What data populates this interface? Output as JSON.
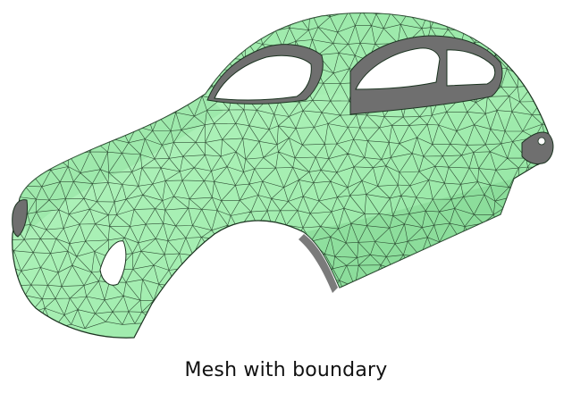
{
  "caption": "Mesh with boundary",
  "colors": {
    "surface_front": "#a7f0b4",
    "surface_shade": "#7fd48f",
    "interior_back": "#6f6f6f",
    "edge": "#1b3320"
  },
  "icons": {
    "model": "car-body-mesh-icon"
  }
}
